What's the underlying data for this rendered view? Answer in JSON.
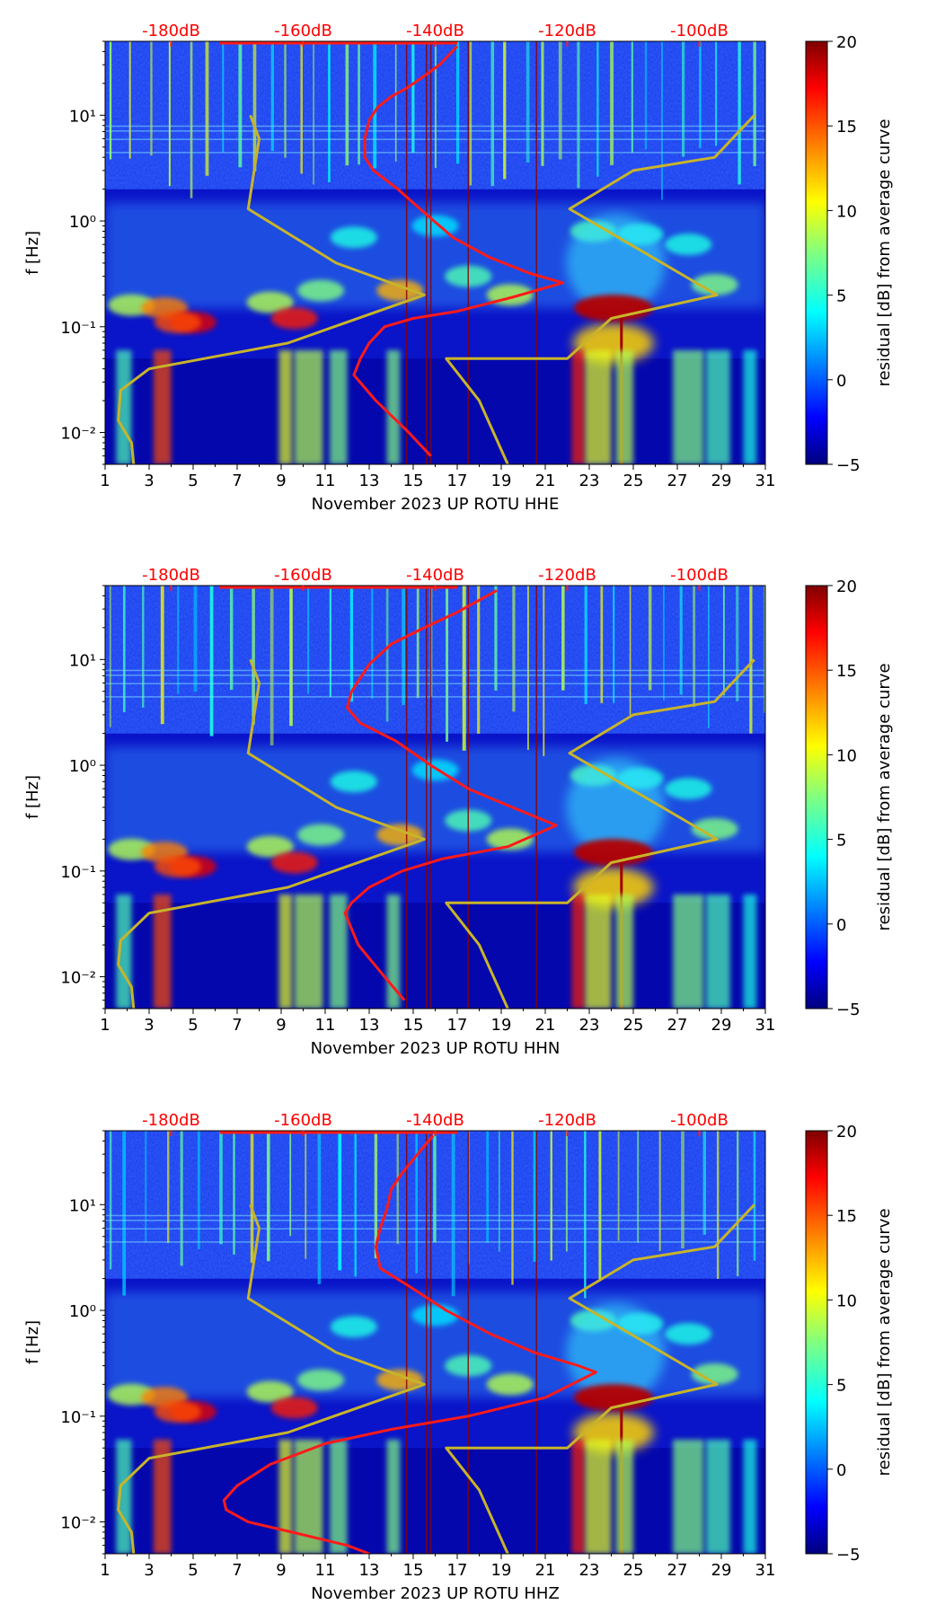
{
  "figure": {
    "description_units": "days / Hz / dB"
  },
  "chart_data": [
    {
      "type": "heatmap",
      "title": "",
      "xlabel": "November 2023 UP ROTU  HHE",
      "ylabel": "f [Hz]",
      "xlim": [
        1,
        31
      ],
      "ylim": [
        0.005,
        50
      ],
      "yscale": "log",
      "x_ticks": [
        1,
        3,
        5,
        7,
        9,
        11,
        13,
        15,
        17,
        19,
        21,
        23,
        25,
        27,
        29,
        31
      ],
      "x_tick_labels": [
        "1",
        "3",
        "5",
        "7",
        "9",
        "11",
        "13",
        "15",
        "17",
        "19",
        "21",
        "23",
        "25",
        "27",
        "29",
        "31"
      ],
      "y_ticks": [
        0.01,
        0.1,
        1,
        10
      ],
      "y_tick_labels": [
        "10⁻²",
        "10⁻¹",
        "10⁰",
        "10¹"
      ],
      "top_axis_labels": [
        "-180dB",
        "-160dB",
        "-140dB",
        "-120dB",
        "-100dB"
      ],
      "top_axis_positions_db": [
        -180,
        -160,
        -140,
        -120,
        -100
      ],
      "colorbar": {
        "label": "residual [dB] from average curve",
        "range": [
          -5,
          20
        ],
        "ticks": [
          20,
          15,
          10,
          5,
          0,
          -5
        ],
        "tick_labels": [
          "20",
          "15",
          "10",
          "5",
          "0",
          "−5"
        ]
      },
      "series": [
        {
          "name": "average PSD curve",
          "color": "#ff1a1a",
          "points": [
            [
              17.0,
              45
            ],
            [
              16.2,
              30
            ],
            [
              15.3,
              22
            ],
            [
              14.7,
              18
            ],
            [
              14.0,
              15
            ],
            [
              13.4,
              12
            ],
            [
              13.0,
              9
            ],
            [
              12.8,
              6
            ],
            [
              12.8,
              4
            ],
            [
              13.2,
              3
            ],
            [
              14.3,
              2
            ],
            [
              15.5,
              1.2
            ],
            [
              16.8,
              0.7
            ],
            [
              18.5,
              0.45
            ],
            [
              20.3,
              0.32
            ],
            [
              21.8,
              0.26
            ],
            [
              19.5,
              0.19
            ],
            [
              17.0,
              0.14
            ],
            [
              15.0,
              0.12
            ],
            [
              13.7,
              0.1
            ],
            [
              13.0,
              0.07
            ],
            [
              12.6,
              0.05
            ],
            [
              12.3,
              0.035
            ],
            [
              13.3,
              0.02
            ],
            [
              14.8,
              0.01
            ],
            [
              15.8,
              0.006
            ]
          ]
        },
        {
          "name": "noise model (NLNM/NHNM)",
          "color": "#c8b42a",
          "points": [
            [
              7.6,
              10
            ],
            [
              8.0,
              6
            ],
            [
              7.5,
              1.3
            ],
            [
              11.5,
              0.4
            ],
            [
              15.5,
              0.2
            ],
            [
              9.3,
              0.07
            ],
            [
              3.0,
              0.04
            ],
            [
              1.7,
              0.025
            ],
            [
              1.6,
              0.013
            ],
            [
              2.2,
              0.008
            ],
            [
              2.3,
              0.005
            ]
          ]
        },
        {
          "name": "noise model high",
          "color": "#c8b42a",
          "points": [
            [
              30.5,
              10
            ],
            [
              28.7,
              4
            ],
            [
              25.0,
              3
            ],
            [
              22.1,
              1.3
            ],
            [
              28.8,
              0.2
            ],
            [
              24.0,
              0.12
            ],
            [
              22.0,
              0.05
            ],
            [
              16.5,
              0.05
            ],
            [
              18.0,
              0.02
            ],
            [
              19.3,
              0.005
            ]
          ]
        }
      ]
    },
    {
      "type": "heatmap",
      "title": "",
      "xlabel": "November 2023 UP ROTU  HHN",
      "ylabel": "f [Hz]",
      "xlim": [
        1,
        31
      ],
      "ylim": [
        0.005,
        50
      ],
      "yscale": "log",
      "x_ticks": [
        1,
        3,
        5,
        7,
        9,
        11,
        13,
        15,
        17,
        19,
        21,
        23,
        25,
        27,
        29,
        31
      ],
      "x_tick_labels": [
        "1",
        "3",
        "5",
        "7",
        "9",
        "11",
        "13",
        "15",
        "17",
        "19",
        "21",
        "23",
        "25",
        "27",
        "29",
        "31"
      ],
      "y_ticks": [
        0.01,
        0.1,
        1,
        10
      ],
      "y_tick_labels": [
        "10⁻²",
        "10⁻¹",
        "10⁰",
        "10¹"
      ],
      "top_axis_labels": [
        "-180dB",
        "-160dB",
        "-140dB",
        "-120dB",
        "-100dB"
      ],
      "top_axis_positions_db": [
        -180,
        -160,
        -140,
        -120,
        -100
      ],
      "colorbar": {
        "label": "residual [dB] from average curve",
        "range": [
          -5,
          20
        ],
        "ticks": [
          20,
          15,
          10,
          5,
          0,
          -5
        ],
        "tick_labels": [
          "20",
          "15",
          "10",
          "5",
          "0",
          "−5"
        ]
      },
      "series": [
        {
          "name": "average PSD curve",
          "color": "#ff1a1a",
          "points": [
            [
              18.8,
              45
            ],
            [
              17.0,
              28
            ],
            [
              15.5,
              20
            ],
            [
              14.0,
              14
            ],
            [
              13.0,
              9
            ],
            [
              12.2,
              5
            ],
            [
              12.0,
              3.5
            ],
            [
              12.6,
              2.5
            ],
            [
              14.2,
              1.7
            ],
            [
              15.8,
              1.0
            ],
            [
              17.5,
              0.6
            ],
            [
              19.5,
              0.4
            ],
            [
              21.5,
              0.27
            ],
            [
              19.3,
              0.17
            ],
            [
              16.3,
              0.13
            ],
            [
              14.5,
              0.1
            ],
            [
              13.0,
              0.07
            ],
            [
              12.2,
              0.05
            ],
            [
              11.9,
              0.04
            ],
            [
              12.5,
              0.02
            ],
            [
              13.7,
              0.01
            ],
            [
              14.6,
              0.006
            ]
          ]
        },
        {
          "name": "noise model (NLNM/NHNM)",
          "color": "#c8b42a",
          "points": [
            [
              7.6,
              10
            ],
            [
              8.0,
              6
            ],
            [
              7.5,
              1.3
            ],
            [
              11.5,
              0.4
            ],
            [
              15.5,
              0.2
            ],
            [
              9.3,
              0.07
            ],
            [
              3.0,
              0.04
            ],
            [
              1.7,
              0.022
            ],
            [
              1.6,
              0.013
            ],
            [
              2.2,
              0.008
            ],
            [
              2.3,
              0.005
            ]
          ]
        },
        {
          "name": "noise model high",
          "color": "#c8b42a",
          "points": [
            [
              30.5,
              10
            ],
            [
              28.7,
              4
            ],
            [
              25.0,
              3
            ],
            [
              22.1,
              1.3
            ],
            [
              28.8,
              0.2
            ],
            [
              24.0,
              0.12
            ],
            [
              22.0,
              0.05
            ],
            [
              16.5,
              0.05
            ],
            [
              18.0,
              0.02
            ],
            [
              19.3,
              0.005
            ]
          ]
        }
      ]
    },
    {
      "type": "heatmap",
      "title": "",
      "xlabel": "November 2023 UP ROTU  HHZ",
      "ylabel": "f [Hz]",
      "xlim": [
        1,
        31
      ],
      "ylim": [
        0.005,
        50
      ],
      "yscale": "log",
      "x_ticks": [
        1,
        3,
        5,
        7,
        9,
        11,
        13,
        15,
        17,
        19,
        21,
        23,
        25,
        27,
        29,
        31
      ],
      "x_tick_labels": [
        "1",
        "3",
        "5",
        "7",
        "9",
        "11",
        "13",
        "15",
        "17",
        "19",
        "21",
        "23",
        "25",
        "27",
        "29",
        "31"
      ],
      "y_ticks": [
        0.01,
        0.1,
        1,
        10
      ],
      "y_tick_labels": [
        "10⁻²",
        "10⁻¹",
        "10⁰",
        "10¹"
      ],
      "top_axis_labels": [
        "-180dB",
        "-160dB",
        "-140dB",
        "-120dB",
        "-100dB"
      ],
      "top_axis_positions_db": [
        -180,
        -160,
        -140,
        -120,
        -100
      ],
      "colorbar": {
        "label": "residual [dB] from average curve",
        "range": [
          -5,
          20
        ],
        "ticks": [
          20,
          15,
          10,
          5,
          0,
          -5
        ],
        "tick_labels": [
          "20",
          "15",
          "10",
          "5",
          "0",
          "−5"
        ]
      },
      "series": [
        {
          "name": "average PSD curve",
          "color": "#ff1a1a",
          "points": [
            [
              15.9,
              45
            ],
            [
              15.2,
              30
            ],
            [
              14.5,
              20
            ],
            [
              14.0,
              14
            ],
            [
              13.8,
              9
            ],
            [
              13.5,
              6
            ],
            [
              13.3,
              4
            ],
            [
              13.5,
              2.5
            ],
            [
              14.8,
              1.7
            ],
            [
              16.5,
              1.0
            ],
            [
              18.5,
              0.6
            ],
            [
              20.5,
              0.4
            ],
            [
              22.5,
              0.3
            ],
            [
              23.3,
              0.26
            ],
            [
              21.0,
              0.15
            ],
            [
              17.5,
              0.1
            ],
            [
              14.0,
              0.075
            ],
            [
              11.0,
              0.055
            ],
            [
              8.5,
              0.035
            ],
            [
              7.0,
              0.022
            ],
            [
              6.4,
              0.016
            ],
            [
              6.5,
              0.013
            ],
            [
              7.5,
              0.01
            ],
            [
              9.5,
              0.008
            ],
            [
              12.0,
              0.006
            ],
            [
              13.0,
              0.005
            ]
          ]
        },
        {
          "name": "noise model (NLNM/NHNM)",
          "color": "#c8b42a",
          "points": [
            [
              7.6,
              10
            ],
            [
              8.0,
              6
            ],
            [
              7.5,
              1.3
            ],
            [
              11.5,
              0.4
            ],
            [
              15.5,
              0.2
            ],
            [
              9.3,
              0.07
            ],
            [
              3.0,
              0.04
            ],
            [
              1.7,
              0.022
            ],
            [
              1.6,
              0.013
            ],
            [
              2.2,
              0.008
            ],
            [
              2.3,
              0.005
            ]
          ]
        },
        {
          "name": "noise model high",
          "color": "#c8b42a",
          "points": [
            [
              30.5,
              10
            ],
            [
              28.7,
              4
            ],
            [
              25.0,
              3
            ],
            [
              22.1,
              1.3
            ],
            [
              28.8,
              0.2
            ],
            [
              24.0,
              0.12
            ],
            [
              22.0,
              0.05
            ],
            [
              16.5,
              0.05
            ],
            [
              18.0,
              0.02
            ],
            [
              19.3,
              0.005
            ]
          ]
        }
      ]
    }
  ]
}
